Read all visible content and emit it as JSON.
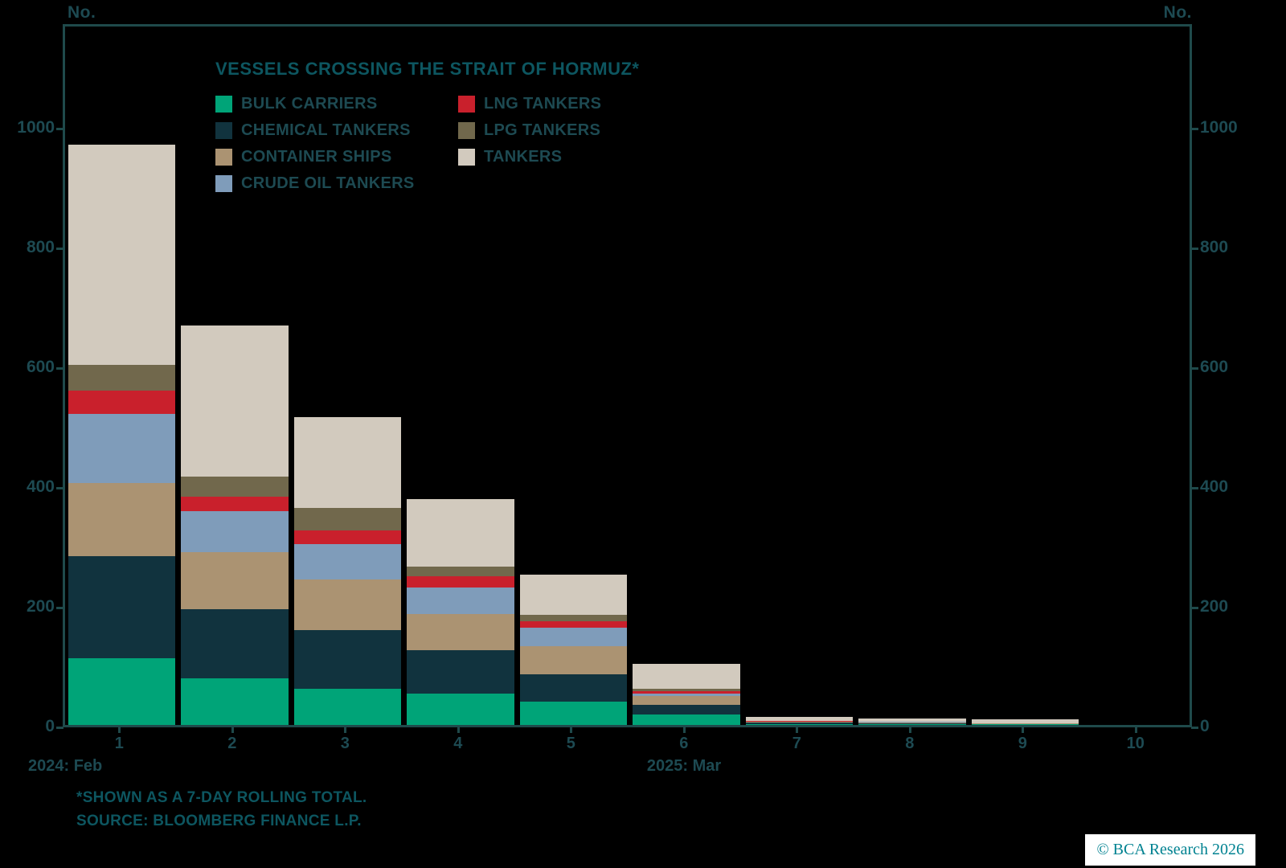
{
  "colors": {
    "background": "#000000",
    "frame_border": "#1f4a4b",
    "text": "#1d4a52",
    "teal_text": "#0d5660",
    "copyright_text": "#008291",
    "copyright_bg": "#ffffff"
  },
  "axis": {
    "left_unit": "No.",
    "right_unit": "No.",
    "y_ticks": [
      0,
      200,
      400,
      600,
      800,
      1000
    ],
    "x_ticks": [
      "1",
      "2",
      "3",
      "4",
      "5",
      "6",
      "7",
      "8",
      "9",
      "10"
    ],
    "x_period_start": "2024: Feb",
    "x_period_mid": "2025: Mar"
  },
  "legend": {
    "title": "VESSELS CROSSING THE STRAIT OF HORMUZ*",
    "columns": [
      [
        {
          "label": "BULK CARRIERS",
          "color": "#00a478"
        },
        {
          "label": "CHEMICAL TANKERS",
          "color": "#11333e"
        },
        {
          "label": "CONTAINER SHIPS",
          "color": "#ab9372"
        },
        {
          "label": "CRUDE OIL TANKERS",
          "color": "#7f9cba"
        }
      ],
      [
        {
          "label": "LNG TANKERS",
          "color": "#c9202c"
        },
        {
          "label": "LPG TANKERS",
          "color": "#71684c"
        },
        {
          "label": "TANKERS",
          "color": "#d2cabe"
        }
      ]
    ]
  },
  "footnote": {
    "line1": "*SHOWN AS A 7-DAY ROLLING TOTAL.",
    "line2": "SOURCE: BLOOMBERG FINANCE L.P."
  },
  "copyright": "© BCA Research 2026",
  "chart_data": {
    "type": "bar",
    "stacked": true,
    "stack_order": "bottom-to-top",
    "title": "VESSELS CROSSING THE STRAIT OF HORMUZ*",
    "xlabel": "",
    "ylabel": "No.",
    "ylim": [
      0,
      1175
    ],
    "grid": false,
    "legend_position": "top-left",
    "categories": [
      1,
      2,
      3,
      4,
      5,
      6,
      7,
      8,
      9,
      10
    ],
    "series": [
      {
        "name": "BULK CARRIERS",
        "color": "#00a478",
        "values": [
          112,
          78,
          61,
          53,
          39,
          18,
          2,
          2,
          1,
          0
        ]
      },
      {
        "name": "CHEMICAL TANKERS",
        "color": "#11333e",
        "values": [
          170,
          116,
          98,
          72,
          45,
          16,
          2,
          1,
          1,
          0
        ]
      },
      {
        "name": "CONTAINER SHIPS",
        "color": "#ab9372",
        "values": [
          122,
          95,
          84,
          61,
          48,
          14,
          1,
          1,
          1,
          0
        ]
      },
      {
        "name": "CRUDE OIL TANKERS",
        "color": "#7f9cba",
        "values": [
          116,
          68,
          59,
          44,
          31,
          5,
          1,
          1,
          0,
          0
        ]
      },
      {
        "name": "LNG TANKERS",
        "color": "#c9202c",
        "values": [
          38,
          24,
          23,
          18,
          10,
          4,
          1,
          0,
          0,
          0
        ]
      },
      {
        "name": "LPG TANKERS",
        "color": "#71684c",
        "values": [
          44,
          34,
          38,
          16,
          11,
          3,
          0,
          0,
          0,
          0
        ]
      },
      {
        "name": "TANKERS",
        "color": "#d2cabe",
        "values": [
          367,
          252,
          152,
          113,
          67,
          42,
          7,
          6,
          6,
          0
        ]
      }
    ]
  }
}
